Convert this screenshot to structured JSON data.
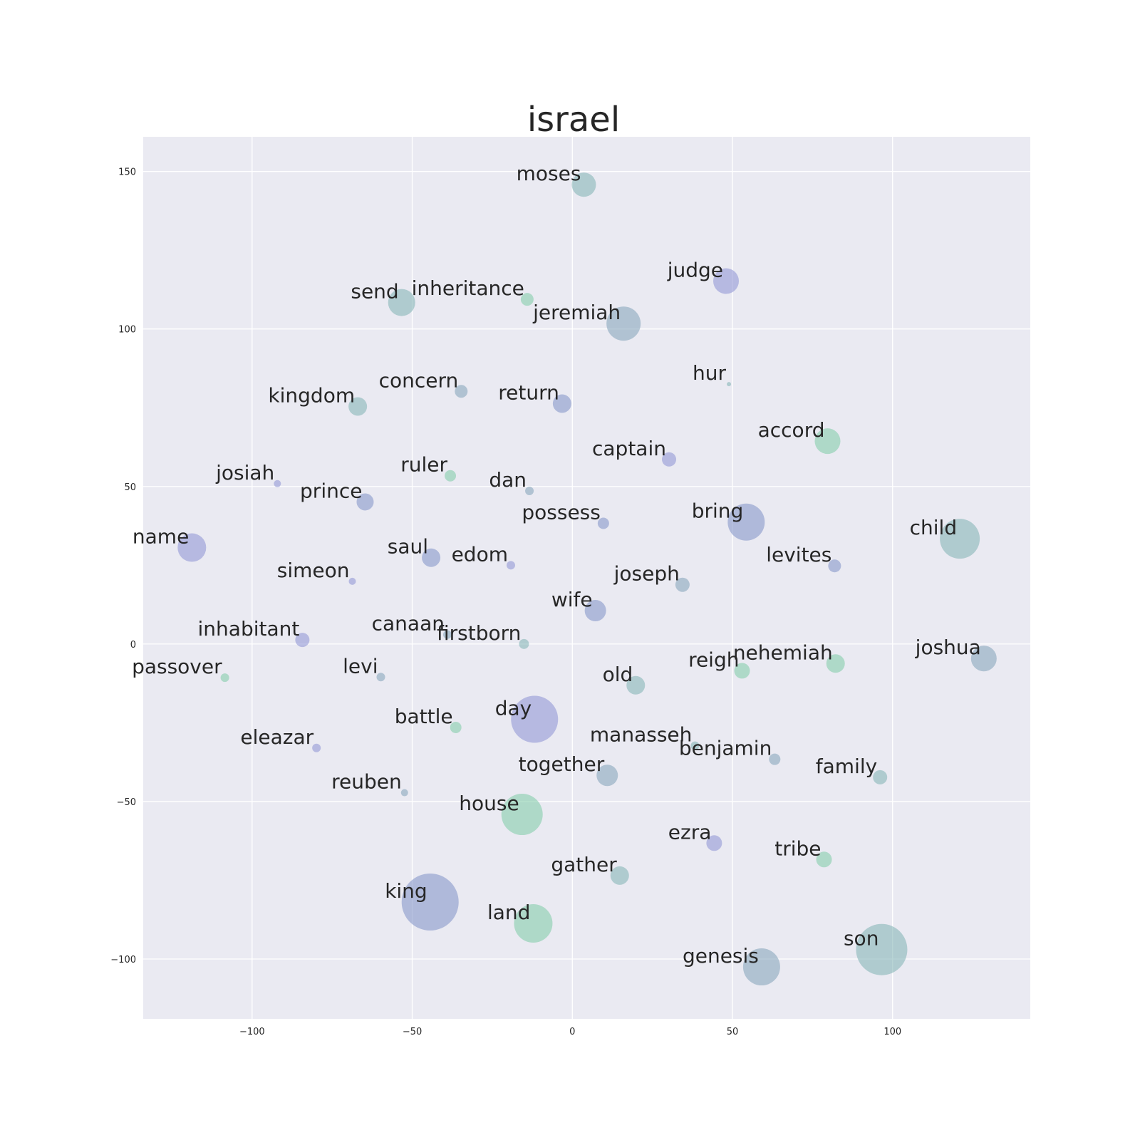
{
  "chart_data": {
    "type": "scatter",
    "title": "israel",
    "xlabel": "",
    "ylabel": "",
    "xlim": [
      -134,
      143
    ],
    "ylim": [
      -119,
      161
    ],
    "x_ticks": [
      -100,
      -50,
      0,
      50,
      100
    ],
    "x_tick_labels": [
      "−100",
      "−50",
      "0",
      "50",
      "100"
    ],
    "y_ticks": [
      -100,
      -50,
      0,
      50,
      100,
      150
    ],
    "y_tick_labels": [
      "−100",
      "−50",
      "0",
      "50",
      "100",
      "150"
    ],
    "grid": true,
    "legend": "none",
    "background_color": "#eaeaf2",
    "palette": {
      "blue": "#7e90c6",
      "teal": "#7eb0b2",
      "green": "#7ccaa6",
      "slate": "#7fa0b8",
      "violet": "#8a8fd4"
    },
    "points": [
      {
        "label": "moses",
        "x": 3.6,
        "y": 145.8,
        "size": 17,
        "color": "#7eb0b2"
      },
      {
        "label": "judge",
        "x": 48,
        "y": 115.2,
        "size": 18,
        "color": "#8a8fd4"
      },
      {
        "label": "send",
        "x": -53.3,
        "y": 108.4,
        "size": 19,
        "color": "#7eb0b2"
      },
      {
        "label": "inheritance",
        "x": -14.1,
        "y": 109.4,
        "size": 9,
        "color": "#7ccaa6"
      },
      {
        "label": "jeremiah",
        "x": 16,
        "y": 101.7,
        "size": 24,
        "color": "#7fa0b8"
      },
      {
        "label": "hur",
        "x": 48.9,
        "y": 82.5,
        "size": 3,
        "color": "#7eb0b2"
      },
      {
        "label": "concern",
        "x": -34.7,
        "y": 80.2,
        "size": 9,
        "color": "#7fa0b8"
      },
      {
        "label": "kingdom",
        "x": -67,
        "y": 75.4,
        "size": 13,
        "color": "#7eb0b2"
      },
      {
        "label": "return",
        "x": -3.2,
        "y": 76.3,
        "size": 13,
        "color": "#7e90c6"
      },
      {
        "label": "accord",
        "x": 79.7,
        "y": 64.4,
        "size": 18,
        "color": "#7ccaa6"
      },
      {
        "label": "captain",
        "x": 30.2,
        "y": 58.6,
        "size": 10,
        "color": "#8a8fd4"
      },
      {
        "label": "ruler",
        "x": -38.1,
        "y": 53.4,
        "size": 8,
        "color": "#7ccaa6"
      },
      {
        "label": "josiah",
        "x": -92.1,
        "y": 50.9,
        "size": 5,
        "color": "#8a8fd4"
      },
      {
        "label": "dan",
        "x": -13.4,
        "y": 48.6,
        "size": 6,
        "color": "#7fa0b8"
      },
      {
        "label": "prince",
        "x": -64.7,
        "y": 45.1,
        "size": 12,
        "color": "#7e90c6"
      },
      {
        "label": "bring",
        "x": 54.3,
        "y": 38.7,
        "size": 26,
        "color": "#7e90c6"
      },
      {
        "label": "possess",
        "x": 9.7,
        "y": 38.3,
        "size": 8,
        "color": "#7e90c6"
      },
      {
        "label": "child",
        "x": 121,
        "y": 33.4,
        "size": 28,
        "color": "#7eb0b2"
      },
      {
        "label": "name",
        "x": -118.8,
        "y": 30.6,
        "size": 20,
        "color": "#8a8fd4"
      },
      {
        "label": "saul",
        "x": -44.1,
        "y": 27.4,
        "size": 13,
        "color": "#7e90c6"
      },
      {
        "label": "edom",
        "x": -19.2,
        "y": 25,
        "size": 6,
        "color": "#8a8fd4"
      },
      {
        "label": "levites",
        "x": 81.9,
        "y": 24.8,
        "size": 9,
        "color": "#7e90c6"
      },
      {
        "label": "simeon",
        "x": -68.7,
        "y": 19.9,
        "size": 5,
        "color": "#8a8fd4"
      },
      {
        "label": "joseph",
        "x": 34.4,
        "y": 18.8,
        "size": 10,
        "color": "#7fa0b8"
      },
      {
        "label": "wife",
        "x": 7.2,
        "y": 10.6,
        "size": 15,
        "color": "#7e90c6"
      },
      {
        "label": "canaan",
        "x": -39,
        "y": 3,
        "size": 6,
        "color": "#7fa0b8"
      },
      {
        "label": "inhabitant",
        "x": -84.3,
        "y": 1.3,
        "size": 10,
        "color": "#8a8fd4"
      },
      {
        "label": "firstborn",
        "x": -15.1,
        "y": 0,
        "size": 7,
        "color": "#7eb0b2"
      },
      {
        "label": "joshua",
        "x": 128.5,
        "y": -4.6,
        "size": 18,
        "color": "#7fa0b8"
      },
      {
        "label": "nehemiah",
        "x": 82.2,
        "y": -6.2,
        "size": 13,
        "color": "#7ccaa6"
      },
      {
        "label": "reigh",
        "x": 53,
        "y": -8.5,
        "size": 11,
        "color": "#7ccaa6"
      },
      {
        "label": "passover",
        "x": -108.5,
        "y": -10.7,
        "size": 6,
        "color": "#7ccaa6"
      },
      {
        "label": "levi",
        "x": -59.8,
        "y": -10.5,
        "size": 6,
        "color": "#7fa0b8"
      },
      {
        "label": "old",
        "x": 19.8,
        "y": -13.1,
        "size": 13,
        "color": "#7eb0b2"
      },
      {
        "label": "day",
        "x": -11.8,
        "y": -23.9,
        "size": 33,
        "color": "#8a8fd4"
      },
      {
        "label": "battle",
        "x": -36.4,
        "y": -26.5,
        "size": 8,
        "color": "#7ccaa6"
      },
      {
        "label": "eleazar",
        "x": -79.9,
        "y": -33,
        "size": 6,
        "color": "#8a8fd4"
      },
      {
        "label": "manasseh",
        "x": 38.3,
        "y": -32.3,
        "size": 6,
        "color": "#7eb0b2"
      },
      {
        "label": "benjamin",
        "x": 63.2,
        "y": -36.6,
        "size": 8,
        "color": "#7fa0b8"
      },
      {
        "label": "family",
        "x": 96.1,
        "y": -42.3,
        "size": 10,
        "color": "#7eb0b2"
      },
      {
        "label": "together",
        "x": 10.9,
        "y": -41.7,
        "size": 15,
        "color": "#7fa0b8"
      },
      {
        "label": "reuben",
        "x": -52.4,
        "y": -47.2,
        "size": 5,
        "color": "#7fa0b8"
      },
      {
        "label": "house",
        "x": -15.7,
        "y": -54.1,
        "size": 29,
        "color": "#7ccaa6"
      },
      {
        "label": "ezra",
        "x": 44.3,
        "y": -63.2,
        "size": 11,
        "color": "#8a8fd4"
      },
      {
        "label": "tribe",
        "x": 78.6,
        "y": -68.4,
        "size": 11,
        "color": "#7ccaa6"
      },
      {
        "label": "gather",
        "x": 14.8,
        "y": -73.5,
        "size": 13,
        "color": "#7eb0b2"
      },
      {
        "label": "king",
        "x": -44.4,
        "y": -81.9,
        "size": 40,
        "color": "#7e90c6"
      },
      {
        "label": "land",
        "x": -12.2,
        "y": -88.7,
        "size": 27,
        "color": "#7ccaa6"
      },
      {
        "label": "son",
        "x": 96.6,
        "y": -97,
        "size": 36,
        "color": "#7eb0b2"
      },
      {
        "label": "genesis",
        "x": 59.1,
        "y": -102.5,
        "size": 26,
        "color": "#7fa0b8"
      }
    ]
  }
}
